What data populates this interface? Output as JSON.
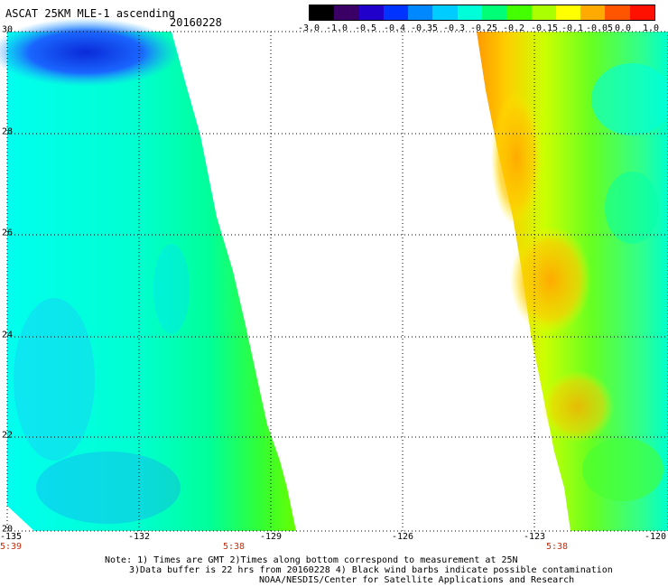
{
  "header": {
    "title": "ASCAT 25KM MLE-1 ascending",
    "date": "20160228"
  },
  "colorbar": {
    "labels": [
      "-3.0",
      "-1.0",
      "-0.5",
      "-0.4",
      "-0.35",
      "-0.3",
      "-0.25",
      "-0.2",
      "-0.15",
      "-0.1",
      "-0.05",
      "0.0",
      "1.0"
    ],
    "colors": [
      "#000000",
      "#3a0066",
      "#2200cc",
      "#0033ff",
      "#0088ff",
      "#00ccff",
      "#00ffd8",
      "#00ff77",
      "#44ff00",
      "#aaff00",
      "#ffff00",
      "#ffaa00",
      "#ff5500",
      "#ff1100"
    ]
  },
  "map": {
    "lat_labels": [
      "30",
      "28",
      "26",
      "24",
      "22",
      "20"
    ],
    "lon_labels": [
      "-135",
      "-132",
      "-129",
      "-126",
      "-123",
      "-120"
    ],
    "time_labels": [
      "5:39",
      "5:38",
      "5:38"
    ]
  },
  "notes": {
    "line1": "Note: 1) Times are GMT 2)Times along bottom correspond to measurement at 25N",
    "line2": "3)Data buffer is 22 hrs from 20160228 4) Black wind barbs indicate possible contamination",
    "line3": "NOAA/NESDIS/Center for Satellite Applications and Research"
  }
}
